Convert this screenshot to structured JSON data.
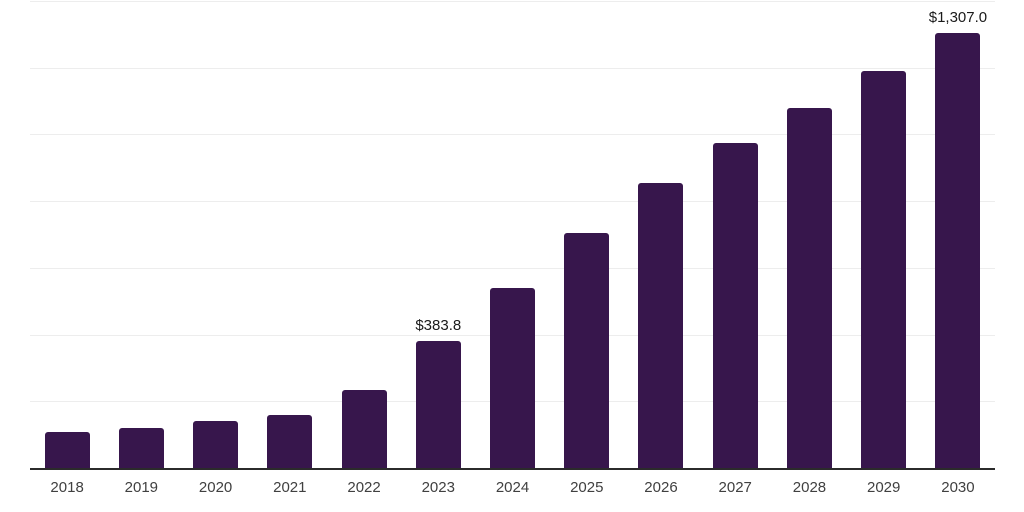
{
  "chart_data": {
    "type": "bar",
    "title": "",
    "xlabel": "",
    "ylabel": "",
    "categories": [
      "2018",
      "2019",
      "2020",
      "2021",
      "2022",
      "2023",
      "2024",
      "2025",
      "2026",
      "2027",
      "2028",
      "2029",
      "2030"
    ],
    "values": [
      111,
      123,
      144,
      162,
      237,
      383.8,
      543,
      708,
      858,
      978,
      1083,
      1194,
      1307.0
    ],
    "bar_labels": [
      "",
      "",
      "",
      "",
      "",
      "$383.8",
      "",
      "",
      "",
      "",
      "",
      "",
      "$1,307.0"
    ],
    "ylim": [
      0,
      1400
    ],
    "gridline_step": 200,
    "grid": true,
    "legend": false,
    "colors": {
      "bar": "#37164C",
      "gridline": "#EDEDED",
      "axis_line": "#2B2B2B",
      "tick_label": "#404040",
      "value_label": "#1A1A1A",
      "background": "#FFFFFF"
    }
  }
}
